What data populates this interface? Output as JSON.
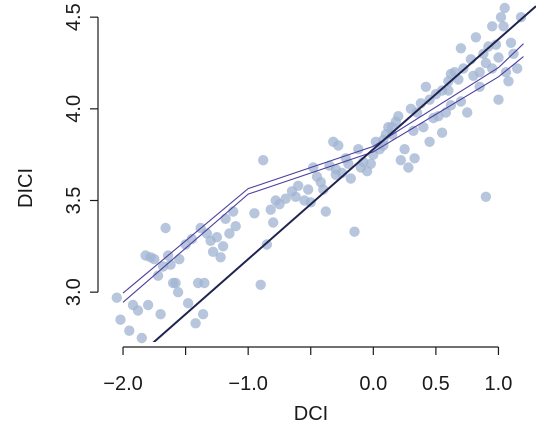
{
  "chart_data": {
    "type": "scatter",
    "title": "",
    "xlabel": "DCI",
    "ylabel": "DICI",
    "xlim": [
      -2.2,
      1.3
    ],
    "ylim": [
      2.75,
      4.55
    ],
    "grid": false,
    "legend": "none",
    "x_ticks": [
      {
        "value": -2.0,
        "label": "−2.0"
      },
      {
        "value": -1.5,
        "label": ""
      },
      {
        "value": -1.0,
        "label": "−1.0"
      },
      {
        "value": -0.5,
        "label": ""
      },
      {
        "value": 0.0,
        "label": "0.0"
      },
      {
        "value": 0.5,
        "label": "0.5"
      },
      {
        "value": 1.0,
        "label": "1.0"
      }
    ],
    "y_ticks": [
      {
        "value": 3.0,
        "label": "3.0"
      },
      {
        "value": 3.5,
        "label": "3.5"
      },
      {
        "value": 4.0,
        "label": "4.0"
      },
      {
        "value": 4.5,
        "label": "4.5"
      }
    ],
    "colors": {
      "points": "#9fb3d2",
      "fit_line": "#1f2350",
      "band_lines": "#4b3f9e",
      "axis": "#1a1a1a"
    },
    "fit_line": {
      "intercept": 3.78,
      "slope": 0.6
    },
    "confidence_band": {
      "upper": [
        [
          -2.0,
          2.995
        ],
        [
          -1.0,
          3.565
        ],
        [
          0.0,
          3.795
        ],
        [
          1.0,
          4.225
        ],
        [
          1.2,
          4.355
        ]
      ],
      "lower": [
        [
          -2.0,
          2.945
        ],
        [
          -1.0,
          3.535
        ],
        [
          0.0,
          3.765
        ],
        [
          1.0,
          4.175
        ],
        [
          1.2,
          4.285
        ]
      ]
    },
    "points": [
      [
        -2.05,
        2.97
      ],
      [
        -2.02,
        2.85
      ],
      [
        -1.95,
        2.79
      ],
      [
        -1.92,
        2.93
      ],
      [
        -1.88,
        2.9
      ],
      [
        -1.85,
        2.75
      ],
      [
        -1.82,
        3.2
      ],
      [
        -1.78,
        3.19
      ],
      [
        -1.75,
        3.18
      ],
      [
        -1.72,
        3.09
      ],
      [
        -1.7,
        2.88
      ],
      [
        -1.68,
        3.14
      ],
      [
        -1.66,
        3.35
      ],
      [
        -1.64,
        3.2
      ],
      [
        -1.62,
        3.15
      ],
      [
        -1.6,
        3.05
      ],
      [
        -1.58,
        3.05
      ],
      [
        -1.56,
        3.0
      ],
      [
        -1.55,
        3.18
      ],
      [
        -1.5,
        3.26
      ],
      [
        -1.45,
        3.29
      ],
      [
        -1.42,
        2.83
      ],
      [
        -1.4,
        3.05
      ],
      [
        -1.38,
        3.35
      ],
      [
        -1.36,
        2.88
      ],
      [
        -1.35,
        3.05
      ],
      [
        -1.33,
        3.32
      ],
      [
        -1.3,
        3.28
      ],
      [
        -1.28,
        3.22
      ],
      [
        -1.25,
        3.3
      ],
      [
        -1.22,
        3.19
      ],
      [
        -1.2,
        3.25
      ],
      [
        -1.18,
        3.4
      ],
      [
        -1.15,
        3.32
      ],
      [
        -1.12,
        3.44
      ],
      [
        -1.1,
        3.36
      ],
      [
        -0.95,
        3.43
      ],
      [
        -0.9,
        3.04
      ],
      [
        -0.88,
        3.72
      ],
      [
        -0.85,
        3.26
      ],
      [
        -0.82,
        3.45
      ],
      [
        -0.8,
        3.38
      ],
      [
        -0.78,
        3.5
      ],
      [
        -0.75,
        3.48
      ],
      [
        -0.7,
        3.51
      ],
      [
        -0.65,
        3.55
      ],
      [
        -0.6,
        3.58
      ],
      [
        -0.55,
        3.5
      ],
      [
        -0.52,
        3.56
      ],
      [
        -0.5,
        3.49
      ],
      [
        -0.48,
        3.68
      ],
      [
        -0.45,
        3.63
      ],
      [
        -0.42,
        3.6
      ],
      [
        -0.4,
        3.56
      ],
      [
        -0.38,
        3.44
      ],
      [
        -0.35,
        3.69
      ],
      [
        -0.32,
        3.82
      ],
      [
        -0.3,
        3.64
      ],
      [
        -0.28,
        3.8
      ],
      [
        -0.25,
        3.65
      ],
      [
        -0.22,
        3.73
      ],
      [
        -0.2,
        3.7
      ],
      [
        -0.18,
        3.62
      ],
      [
        -0.15,
        3.33
      ],
      [
        -0.12,
        3.78
      ],
      [
        -0.1,
        3.68
      ],
      [
        -0.08,
        3.71
      ],
      [
        -0.05,
        3.66
      ],
      [
        -0.02,
        3.7
      ],
      [
        0.0,
        3.75
      ],
      [
        0.02,
        3.82
      ],
      [
        0.05,
        3.78
      ],
      [
        0.08,
        3.8
      ],
      [
        0.1,
        3.86
      ],
      [
        0.12,
        3.9
      ],
      [
        0.15,
        3.86
      ],
      [
        0.18,
        3.93
      ],
      [
        0.2,
        3.96
      ],
      [
        0.22,
        3.72
      ],
      [
        0.25,
        3.78
      ],
      [
        0.28,
        3.68
      ],
      [
        0.3,
        4.0
      ],
      [
        0.32,
        3.88
      ],
      [
        0.35,
        3.98
      ],
      [
        0.38,
        4.03
      ],
      [
        0.4,
        3.9
      ],
      [
        0.42,
        4.12
      ],
      [
        0.45,
        3.82
      ],
      [
        0.48,
        3.95
      ],
      [
        0.5,
        4.08
      ],
      [
        0.52,
        3.96
      ],
      [
        0.55,
        3.87
      ],
      [
        0.58,
        3.98
      ],
      [
        0.6,
        4.1
      ],
      [
        0.62,
        4.02
      ],
      [
        0.65,
        4.2
      ],
      [
        0.68,
        4.16
      ],
      [
        0.7,
        4.04
      ],
      [
        0.72,
        4.22
      ],
      [
        0.75,
        3.98
      ],
      [
        0.78,
        4.27
      ],
      [
        0.8,
        4.18
      ],
      [
        0.82,
        4.39
      ],
      [
        0.85,
        4.2
      ],
      [
        0.88,
        4.3
      ],
      [
        0.9,
        3.52
      ],
      [
        0.92,
        4.34
      ],
      [
        0.95,
        4.22
      ],
      [
        0.98,
        4.35
      ],
      [
        1.0,
        4.05
      ],
      [
        1.02,
        4.5
      ],
      [
        1.04,
        4.45
      ],
      [
        1.06,
        4.2
      ],
      [
        1.08,
        4.15
      ],
      [
        1.1,
        4.36
      ],
      [
        1.12,
        4.3
      ],
      [
        1.15,
        4.22
      ],
      [
        1.18,
        4.5
      ],
      [
        0.55,
        4.1
      ],
      [
        0.7,
        4.33
      ],
      [
        0.85,
        4.12
      ],
      [
        0.95,
        4.45
      ],
      [
        1.0,
        4.28
      ],
      [
        -0.62,
        3.52
      ],
      [
        0.08,
        3.83
      ],
      [
        0.33,
        3.73
      ],
      [
        -1.48,
        2.94
      ],
      [
        -1.8,
        2.93
      ],
      [
        0.6,
        4.15
      ],
      [
        0.9,
        4.25
      ],
      [
        1.05,
        4.55
      ],
      [
        0.15,
        3.9
      ],
      [
        -0.3,
        3.67
      ],
      [
        0.45,
        4.05
      ],
      [
        0.62,
        4.19
      ]
    ]
  }
}
